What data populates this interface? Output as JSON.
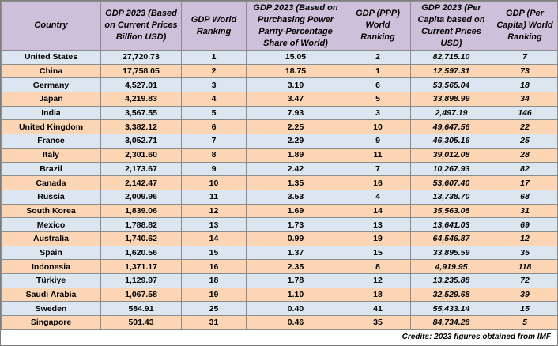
{
  "table": {
    "header": [
      "Country",
      "GDP 2023 (Based on Current Prices Billion USD)",
      "GDP World Ranking",
      "GDP 2023 (Based on Purchasing Power Parity-Percentage Share of World)",
      "GDP (PPP) World Ranking",
      "GDP 2023 (Per Capita based on Current Prices USD)",
      "GDP (Per Capita) World Ranking"
    ],
    "rows": [
      [
        "United States",
        "27,720.73",
        "1",
        "15.05",
        "2",
        "82,715.10",
        "7"
      ],
      [
        "China",
        "17,758.05",
        "2",
        "18.75",
        "1",
        "12,597.31",
        "73"
      ],
      [
        "Germany",
        "4,527.01",
        "3",
        "3.19",
        "6",
        "53,565.04",
        "18"
      ],
      [
        "Japan",
        "4,219.83",
        "4",
        "3.47",
        "5",
        "33,898.99",
        "34"
      ],
      [
        "India",
        "3,567.55",
        "5",
        "7.93",
        "3",
        "2,497.19",
        "146"
      ],
      [
        "United Kingdom",
        "3,382.12",
        "6",
        "2.25",
        "10",
        "49,647.56",
        "22"
      ],
      [
        "France",
        "3,052.71",
        "7",
        "2.29",
        "9",
        "46,305.16",
        "25"
      ],
      [
        "Italy",
        "2,301.60",
        "8",
        "1.89",
        "11",
        "39,012.08",
        "28"
      ],
      [
        "Brazil",
        "2,173.67",
        "9",
        "2.42",
        "7",
        "10,267.93",
        "82"
      ],
      [
        "Canada",
        "2,142.47",
        "10",
        "1.35",
        "16",
        "53,607.40",
        "17"
      ],
      [
        "Russia",
        "2,009.96",
        "11",
        "3.53",
        "4",
        "13,738.70",
        "68"
      ],
      [
        "South Korea",
        "1,839.06",
        "12",
        "1.69",
        "14",
        "35,563.08",
        "31"
      ],
      [
        "Mexico",
        "1,788.82",
        "13",
        "1.73",
        "13",
        "13,641.03",
        "69"
      ],
      [
        "Australia",
        "1,740.62",
        "14",
        "0.99",
        "19",
        "64,546.87",
        "12"
      ],
      [
        "Spain",
        "1,620.56",
        "15",
        "1.37",
        "15",
        "33,895.59",
        "35"
      ],
      [
        "Indonesia",
        "1,371.17",
        "16",
        "2.35",
        "8",
        "4,919.95",
        "118"
      ],
      [
        "Türkiye",
        "1,129.97",
        "18",
        "1.78",
        "12",
        "13,235.88",
        "72"
      ],
      [
        "Saudi Arabia",
        "1,067.58",
        "19",
        "1.10",
        "18",
        "32,529.68",
        "39"
      ],
      [
        "Sweden",
        "584.91",
        "25",
        "0.40",
        "41",
        "55,433.14",
        "15"
      ],
      [
        "Singapore",
        "501.43",
        "31",
        "0.46",
        "35",
        "84,734.28",
        "5"
      ]
    ]
  },
  "footer": {
    "credit": "Credits: 2023 figures obtained from IMF"
  }
}
